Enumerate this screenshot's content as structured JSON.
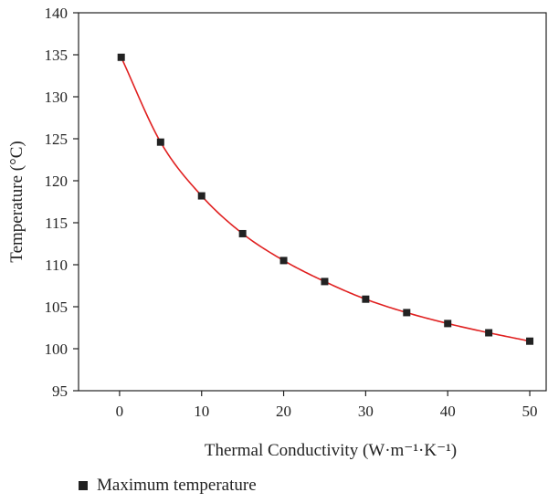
{
  "chart_data": {
    "type": "scatter",
    "xlabel": "Thermal Conductivity (W·m⁻¹·K⁻¹)",
    "ylabel": "Temperature (°C)",
    "xlim": [
      -5,
      52
    ],
    "ylim": [
      95,
      140
    ],
    "xticks": [
      0,
      10,
      20,
      30,
      40,
      50
    ],
    "yticks": [
      95,
      100,
      105,
      110,
      115,
      120,
      125,
      130,
      135,
      140
    ],
    "legend_position": "bottom-left",
    "series": [
      {
        "name": "Maximum temperature",
        "marker": "square",
        "color": "#222222",
        "x": [
          0.2,
          5,
          10,
          15,
          20,
          25,
          30,
          35,
          40,
          45,
          50
        ],
        "y": [
          134.7,
          124.6,
          118.2,
          113.7,
          110.5,
          108.0,
          105.9,
          104.3,
          103.0,
          101.9,
          100.9
        ]
      }
    ],
    "fit_curve": {
      "type": "line",
      "color": "#e02020"
    }
  }
}
